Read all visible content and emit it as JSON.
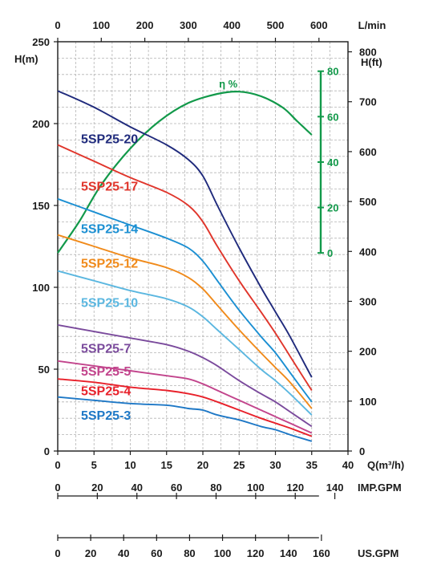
{
  "chart_data": {
    "type": "line",
    "x": {
      "label": "Q(m³/h)",
      "range": [
        0,
        40
      ],
      "ticks": [
        0,
        5,
        10,
        15,
        20,
        25,
        30,
        35,
        40
      ]
    },
    "x_top": {
      "label": "L/min",
      "ticks": [
        0,
        100,
        200,
        300,
        400,
        500,
        600
      ]
    },
    "y_left": {
      "label": "H(m)",
      "range": [
        0,
        250
      ],
      "ticks": [
        0,
        50,
        100,
        150,
        200,
        250
      ]
    },
    "y_right": {
      "label": "H(ft)",
      "ticks": [
        0,
        100,
        200,
        300,
        400,
        500,
        600,
        700,
        800
      ]
    },
    "efficiency_axis": {
      "label": "η %",
      "ticks": [
        0,
        20,
        40,
        60,
        80
      ],
      "color": "#12994a"
    },
    "grid": true,
    "series": [
      {
        "name": "5SP25-20",
        "color": "#1f2a7c",
        "points": [
          [
            0,
            220
          ],
          [
            5,
            210
          ],
          [
            10,
            198
          ],
          [
            15,
            187
          ],
          [
            18,
            178
          ],
          [
            20,
            168
          ],
          [
            22,
            150
          ],
          [
            25,
            124
          ],
          [
            28,
            100
          ],
          [
            30,
            85
          ],
          [
            32,
            70
          ],
          [
            35,
            45
          ]
        ]
      },
      {
        "name": "5SP25-17",
        "color": "#e0352b",
        "points": [
          [
            0,
            187
          ],
          [
            5,
            177
          ],
          [
            10,
            167
          ],
          [
            15,
            158
          ],
          [
            18,
            150
          ],
          [
            20,
            140
          ],
          [
            22,
            125
          ],
          [
            25,
            104
          ],
          [
            28,
            85
          ],
          [
            30,
            72
          ],
          [
            32,
            58
          ],
          [
            35,
            37
          ]
        ]
      },
      {
        "name": "5SP25-14",
        "color": "#1b8fd2",
        "points": [
          [
            0,
            154
          ],
          [
            5,
            146
          ],
          [
            10,
            138
          ],
          [
            15,
            130
          ],
          [
            18,
            124
          ],
          [
            20,
            116
          ],
          [
            22,
            104
          ],
          [
            25,
            86
          ],
          [
            28,
            70
          ],
          [
            30,
            60
          ],
          [
            32,
            48
          ],
          [
            35,
            30
          ]
        ]
      },
      {
        "name": "5SP25-12",
        "color": "#f08a1a",
        "points": [
          [
            0,
            132
          ],
          [
            5,
            125
          ],
          [
            10,
            118
          ],
          [
            15,
            112
          ],
          [
            18,
            106
          ],
          [
            20,
            99
          ],
          [
            22,
            89
          ],
          [
            25,
            74
          ],
          [
            28,
            60
          ],
          [
            30,
            51
          ],
          [
            32,
            42
          ],
          [
            35,
            26
          ]
        ]
      },
      {
        "name": "5SP25-10",
        "color": "#5bb7e0",
        "points": [
          [
            0,
            110
          ],
          [
            5,
            104
          ],
          [
            10,
            98
          ],
          [
            15,
            93
          ],
          [
            18,
            88
          ],
          [
            20,
            82
          ],
          [
            22,
            74
          ],
          [
            25,
            62
          ],
          [
            28,
            50
          ],
          [
            30,
            43
          ],
          [
            32,
            35
          ],
          [
            35,
            22
          ]
        ]
      },
      {
        "name": "5SP25-7",
        "color": "#7a4a9c",
        "points": [
          [
            0,
            77
          ],
          [
            5,
            73
          ],
          [
            10,
            69
          ],
          [
            15,
            65
          ],
          [
            18,
            61
          ],
          [
            20,
            57
          ],
          [
            22,
            52
          ],
          [
            25,
            43
          ],
          [
            28,
            35
          ],
          [
            30,
            30
          ],
          [
            32,
            24
          ],
          [
            35,
            15
          ]
        ]
      },
      {
        "name": "5SP25-5",
        "color": "#c2448c",
        "points": [
          [
            0,
            55
          ],
          [
            5,
            52
          ],
          [
            10,
            49
          ],
          [
            15,
            46
          ],
          [
            18,
            44
          ],
          [
            20,
            41
          ],
          [
            22,
            37
          ],
          [
            25,
            31
          ],
          [
            28,
            25
          ],
          [
            30,
            21
          ],
          [
            32,
            17
          ],
          [
            35,
            11
          ]
        ]
      },
      {
        "name": "5SP25-4",
        "color": "#e8202a",
        "points": [
          [
            0,
            44
          ],
          [
            5,
            42
          ],
          [
            10,
            39
          ],
          [
            15,
            37
          ],
          [
            18,
            35
          ],
          [
            20,
            33
          ],
          [
            22,
            30
          ],
          [
            25,
            25
          ],
          [
            28,
            20
          ],
          [
            30,
            17
          ],
          [
            32,
            14
          ],
          [
            35,
            9
          ]
        ]
      },
      {
        "name": "5SP25-3",
        "color": "#1e78c6",
        "points": [
          [
            0,
            33
          ],
          [
            5,
            31
          ],
          [
            10,
            29
          ],
          [
            15,
            28
          ],
          [
            18,
            26
          ],
          [
            20,
            25
          ],
          [
            22,
            22
          ],
          [
            25,
            19
          ],
          [
            28,
            15
          ],
          [
            30,
            13
          ],
          [
            32,
            10
          ],
          [
            35,
            6
          ]
        ]
      }
    ],
    "efficiency_curve": {
      "name": "η %",
      "color": "#12994a",
      "points": [
        [
          0,
          0
        ],
        [
          3,
          14
        ],
        [
          6,
          30
        ],
        [
          10,
          46
        ],
        [
          14,
          58
        ],
        [
          18,
          66
        ],
        [
          22,
          70
        ],
        [
          25,
          71
        ],
        [
          28,
          69
        ],
        [
          31,
          64
        ],
        [
          33,
          58
        ],
        [
          35,
          52
        ]
      ]
    },
    "bottom_scales": [
      {
        "label": "IMP.GPM",
        "ticks": [
          0,
          20,
          40,
          60,
          80,
          100,
          120,
          140
        ]
      },
      {
        "label": "US.GPM",
        "ticks": [
          0,
          20,
          40,
          60,
          80,
          100,
          120,
          140,
          160
        ]
      }
    ]
  }
}
